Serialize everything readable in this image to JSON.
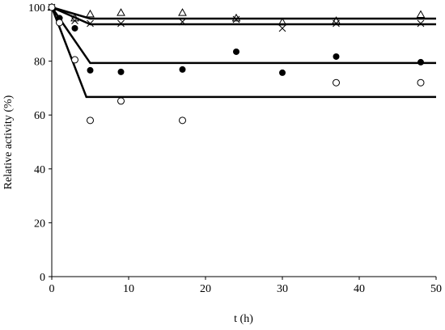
{
  "chart_data": {
    "type": "scatter",
    "x_label": "t (h)",
    "y_label": "Relative activity (%)",
    "xlim": [
      0,
      50
    ],
    "xticks": [
      0,
      10,
      20,
      30,
      40,
      50
    ],
    "ylim": [
      0,
      100
    ],
    "yticks": [
      0,
      20,
      40,
      60,
      80,
      100
    ],
    "x": [
      0,
      1,
      3,
      5,
      9,
      17,
      24,
      30,
      37,
      48
    ],
    "series": [
      {
        "marker": "triangle-open",
        "color": "#000000",
        "values": [
          100,
          null,
          96,
          97.5,
          98,
          98,
          96,
          94.5,
          95,
          97.3
        ]
      },
      {
        "marker": "cross",
        "color": "#000000",
        "values": [
          100,
          95,
          95,
          94,
          94,
          94.6,
          95.5,
          92.2,
          94,
          94
        ]
      },
      {
        "marker": "circle-filled",
        "color": "#000000",
        "values": [
          100,
          96,
          92.2,
          76.6,
          76,
          76.9,
          83.5,
          75.7,
          81.7,
          79.6
        ]
      },
      {
        "marker": "circle-open",
        "color": "#000000",
        "values": [
          100,
          94.3,
          80.5,
          58,
          65.2,
          58,
          null,
          null,
          72,
          72
        ]
      }
    ],
    "fit_lines": [
      {
        "color": "#000000",
        "x": [
          0,
          5,
          50
        ],
        "values": [
          100,
          95.8,
          95.8
        ]
      },
      {
        "color": "#000000",
        "x": [
          0,
          5,
          50
        ],
        "values": [
          100,
          93.7,
          93.7
        ]
      },
      {
        "color": "#000000",
        "x": [
          0,
          5,
          50
        ],
        "values": [
          100,
          79.3,
          79.3
        ]
      },
      {
        "color": "#000000",
        "x": [
          0,
          4.5,
          50
        ],
        "values": [
          100,
          66.7,
          66.7
        ]
      }
    ]
  }
}
